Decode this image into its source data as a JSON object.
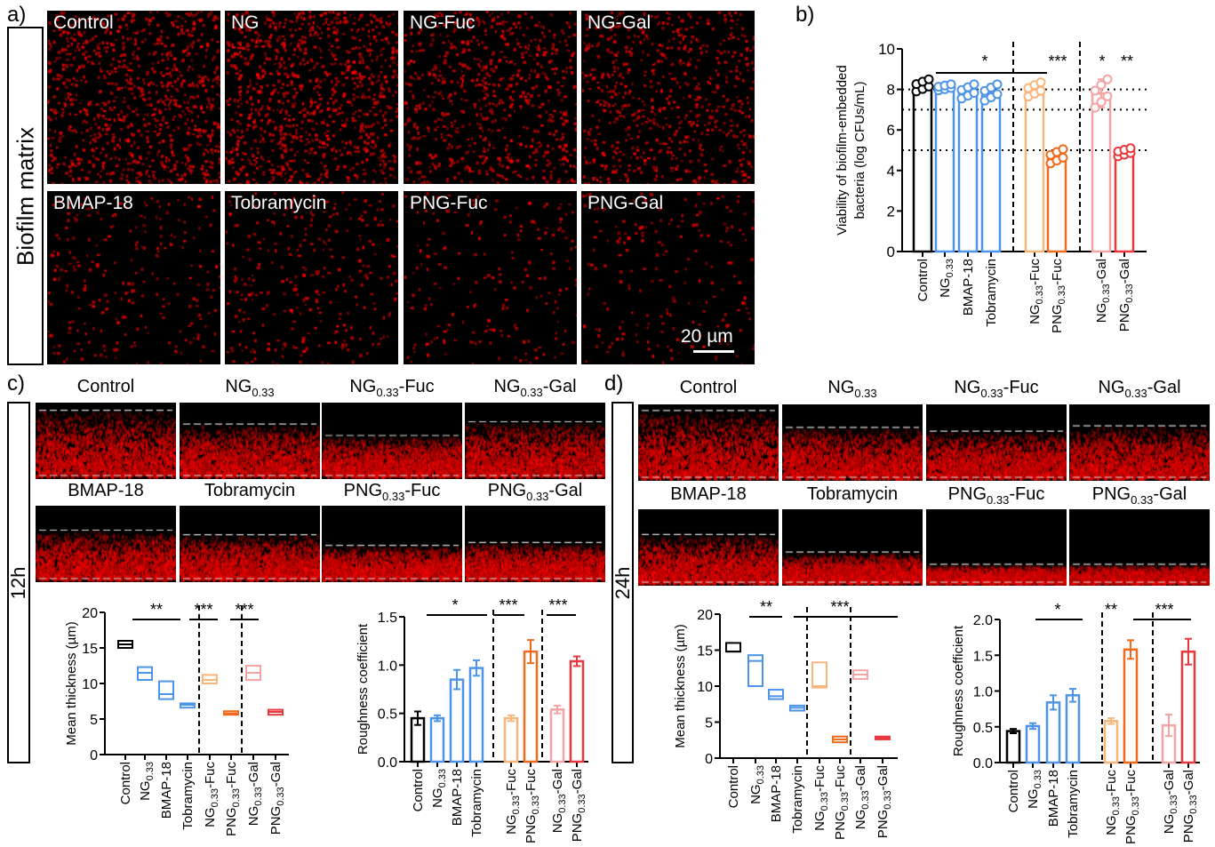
{
  "panels": {
    "a": "a)",
    "b": "b)",
    "c": "c)",
    "d": "d)"
  },
  "panel_a": {
    "side_label": "Biofilm matrix",
    "images": [
      "Control",
      "NG",
      "NG-Fuc",
      "NG-Gal",
      "BMAP-18",
      "Tobramycin",
      "PNG-Fuc",
      "PNG-Gal"
    ],
    "scale_bar": "20 µm"
  },
  "panel_c": {
    "side_label": "12h",
    "images": [
      {
        "text": "Control",
        "sub": "",
        "after": ""
      },
      {
        "text": "NG",
        "sub": "0.33",
        "after": ""
      },
      {
        "text": "NG",
        "sub": "0.33",
        "after": "-Fuc"
      },
      {
        "text": "NG",
        "sub": "0.33",
        "after": "-Gal"
      },
      {
        "text": "BMAP-18",
        "sub": "",
        "after": ""
      },
      {
        "text": "Tobramycin",
        "sub": "",
        "after": ""
      },
      {
        "text": "PNG",
        "sub": "0.33",
        "after": "-Fuc"
      },
      {
        "text": "PNG",
        "sub": "0.33",
        "after": "-Gal"
      }
    ]
  },
  "panel_d": {
    "side_label": "24h",
    "images": [
      {
        "text": "Control",
        "sub": "",
        "after": ""
      },
      {
        "text": "NG",
        "sub": "0.33",
        "after": ""
      },
      {
        "text": "NG",
        "sub": "0.33",
        "after": "-Fuc"
      },
      {
        "text": "NG",
        "sub": "0.33",
        "after": "-Gal"
      },
      {
        "text": "BMAP-18",
        "sub": "",
        "after": ""
      },
      {
        "text": "Tobramycin",
        "sub": "",
        "after": ""
      },
      {
        "text": "PNG",
        "sub": "0.33",
        "after": "-Fuc"
      },
      {
        "text": "PNG",
        "sub": "0.33",
        "after": "-Gal"
      }
    ]
  },
  "categories": [
    {
      "text": "Control",
      "sub": "",
      "after": ""
    },
    {
      "text": "NG",
      "sub": "0.33",
      "after": ""
    },
    {
      "text": "BMAP-18",
      "sub": "",
      "after": ""
    },
    {
      "text": "Tobramycin",
      "sub": "",
      "after": ""
    },
    {
      "text": "NG",
      "sub": "0.33",
      "after": "-Fuc"
    },
    {
      "text": "PNG",
      "sub": "0.33",
      "after": "-Fuc"
    },
    {
      "text": "NG",
      "sub": "0.33",
      "after": "-Gal"
    },
    {
      "text": "PNG",
      "sub": "0.33",
      "after": "-Gal"
    }
  ],
  "colors": [
    "#000000",
    "#4d94e8",
    "#4d94e8",
    "#4d94e8",
    "#f8b57c",
    "#f06a1c",
    "#f4a3a3",
    "#e8383d"
  ],
  "chart_data": [
    {
      "id": "b",
      "type": "bar",
      "ylabel": [
        "Viability of biofilm-embedded",
        "bacteria (log CFUs/mL)"
      ],
      "ylim": [
        0,
        10
      ],
      "yticks": [
        0,
        2,
        4,
        6,
        8,
        10
      ],
      "values": [
        8.2,
        8.1,
        7.9,
        7.85,
        8.0,
        4.7,
        7.8,
        4.9
      ],
      "errors": [
        0.3,
        0.15,
        0.35,
        0.4,
        0.35,
        0.35,
        0.7,
        0.2
      ],
      "reference_lines": [
        8,
        7,
        5
      ],
      "annotations": [
        "*",
        "***",
        "*",
        "**"
      ]
    },
    {
      "id": "c-thickness",
      "type": "floating-bar",
      "ylabel": "Mean thickness (µm)",
      "ylim": [
        0,
        20
      ],
      "yticks": [
        0,
        5,
        10,
        15,
        20
      ],
      "min": [
        15.0,
        10.5,
        7.8,
        6.6,
        10.0,
        5.6,
        10.5,
        5.6
      ],
      "max": [
        16.0,
        12.3,
        10.3,
        7.2,
        11.2,
        6.1,
        12.5,
        6.3
      ],
      "mean": [
        15.5,
        11.5,
        8.5,
        7.0,
        10.5,
        5.8,
        11.5,
        6.0
      ],
      "annotations": [
        "**",
        "***",
        "***"
      ]
    },
    {
      "id": "c-roughness",
      "type": "bar",
      "ylabel": "Roughness coefficient",
      "ylim": [
        0,
        1.5
      ],
      "yticks": [
        0.0,
        0.5,
        1.0,
        1.5
      ],
      "values": [
        0.45,
        0.45,
        0.85,
        0.97,
        0.45,
        1.14,
        0.54,
        1.04
      ],
      "errors": [
        0.07,
        0.03,
        0.1,
        0.08,
        0.03,
        0.12,
        0.04,
        0.05
      ],
      "annotations": [
        "*",
        "***",
        "***"
      ]
    },
    {
      "id": "d-thickness",
      "type": "floating-bar",
      "ylabel": "Mean thickness (µm)",
      "ylim": [
        0,
        20
      ],
      "yticks": [
        0,
        5,
        10,
        15,
        20
      ],
      "min": [
        14.8,
        10.0,
        8.2,
        6.6,
        9.8,
        2.2,
        11.0,
        2.6
      ],
      "max": [
        16.0,
        14.3,
        9.5,
        7.3,
        13.3,
        3.0,
        12.2,
        3.0
      ],
      "mean": [
        14.8,
        13.5,
        8.6,
        7.0,
        10.0,
        2.6,
        11.6,
        2.8
      ],
      "annotations": [
        "**",
        "***"
      ]
    },
    {
      "id": "d-roughness",
      "type": "bar",
      "ylabel": "Roughness coefficient",
      "ylim": [
        0,
        2.0
      ],
      "yticks": [
        0.0,
        0.5,
        1.0,
        1.5,
        2.0
      ],
      "values": [
        0.44,
        0.51,
        0.84,
        0.94,
        0.58,
        1.58,
        0.52,
        1.55
      ],
      "errors": [
        0.03,
        0.04,
        0.1,
        0.09,
        0.04,
        0.13,
        0.15,
        0.18
      ],
      "annotations": [
        "*",
        "**",
        "***"
      ]
    }
  ]
}
